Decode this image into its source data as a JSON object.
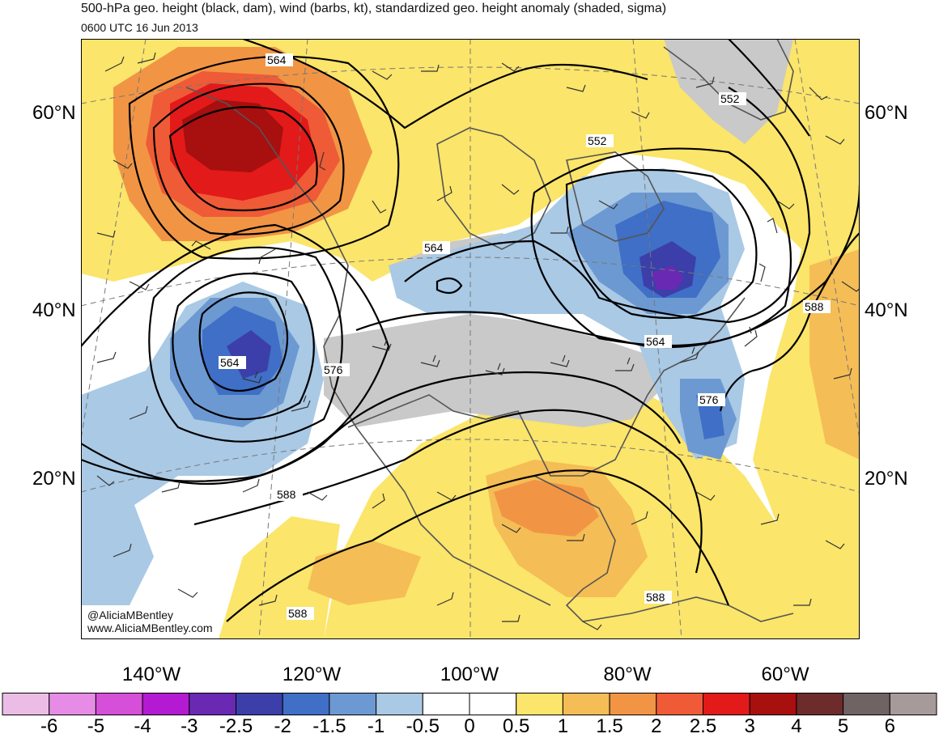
{
  "title": "500-hPa geo. height (black, dam), wind (barbs, kt), standardized geo. height anomaly (shaded, sigma)",
  "subtitle": "0600 UTC 16 Jun 2013",
  "credit": [
    "@AliciaMBentley",
    "www.AliciaMBentley.com"
  ],
  "lat_labels": [
    "60°N",
    "40°N",
    "20°N"
  ],
  "lon_labels": [
    "140°W",
    "120°W",
    "100°W",
    "80°W",
    "60°W"
  ],
  "contour_labels": [
    "564",
    "552",
    "552",
    "564",
    "564",
    "576",
    "564",
    "576",
    "588",
    "588",
    "588",
    "588"
  ],
  "colorbar": {
    "labels": [
      "-6",
      "-5",
      "-4",
      "-3",
      "-2.5",
      "-2",
      "-1.5",
      "-1",
      "-0.5",
      "0",
      "0.5",
      "1",
      "1.5",
      "2",
      "2.5",
      "3",
      "4",
      "5",
      "6"
    ],
    "colors": [
      "#ebbde6",
      "#e68ce6",
      "#d64fd8",
      "#b41ad2",
      "#6a29b2",
      "#3c3fa9",
      "#3f6fc6",
      "#6d99d2",
      "#a9c9e5",
      "#ffffff",
      "#ffffff",
      "#fbe56a",
      "#f5bd55",
      "#f19545",
      "#ef5b36",
      "#e21a1a",
      "#a80f0f",
      "#6e2b2b",
      "#6f6363",
      "#a79a9a"
    ]
  }
}
